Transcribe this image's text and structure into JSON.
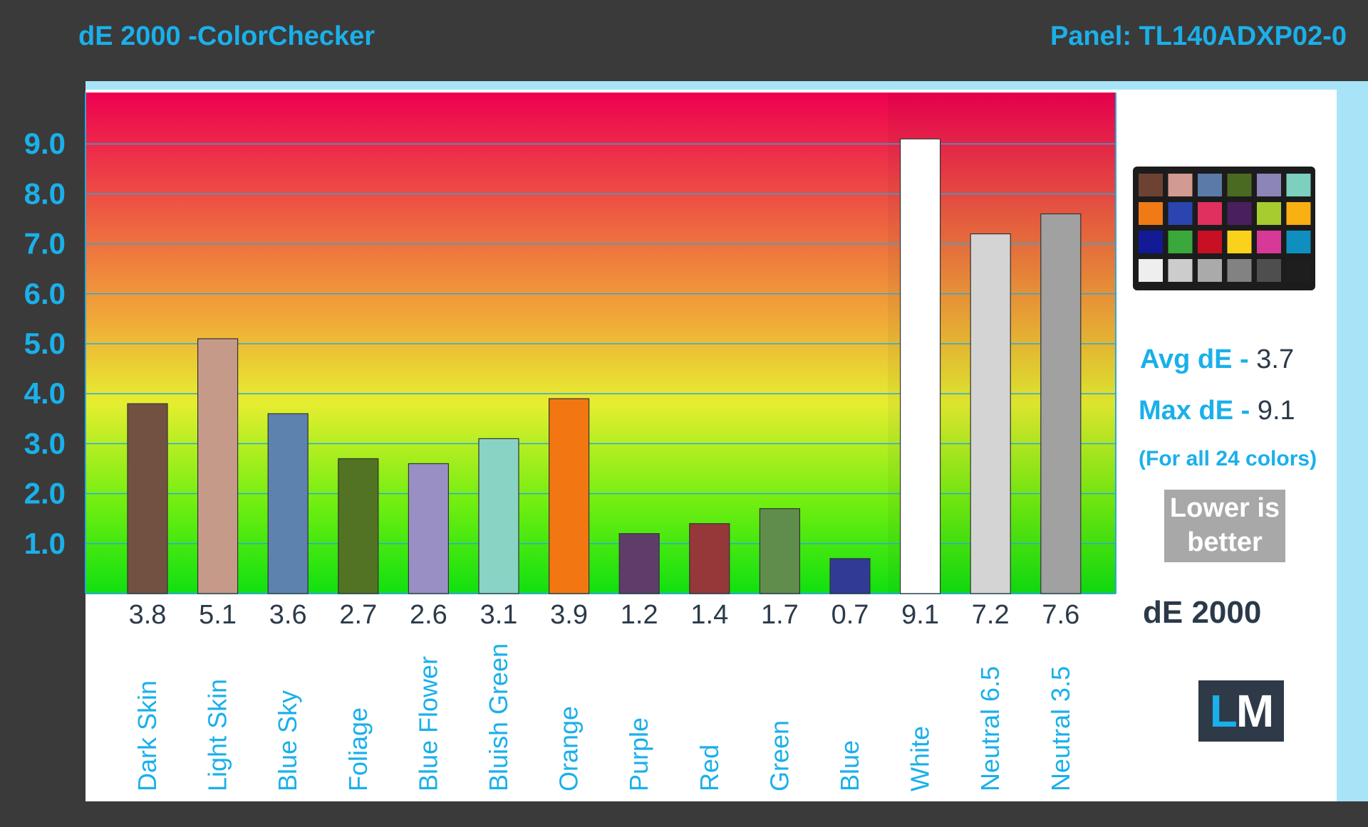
{
  "header": {
    "title": "dE 2000 -ColorChecker",
    "panel": "Panel: TL140ADXP02-0"
  },
  "stats": {
    "avg_label": "Avg dE -",
    "avg_value": "3.7",
    "max_label": "Max dE -",
    "max_value": "9.1",
    "note": "(For all 24 colors)",
    "lower_line1": "Lower is",
    "lower_line2": "better",
    "unit": "dE 2000"
  },
  "logo": {
    "letter1": "L",
    "letter2": "M"
  },
  "colors": {
    "accent": "#1ab0ea",
    "background": "#3a3a3a",
    "gradient_top": "#ee0050",
    "gradient_bottom": "#10e010"
  },
  "colorchecker_swatches": [
    "#6e4233",
    "#d29a90",
    "#5b7aa8",
    "#4a6a22",
    "#8c85b8",
    "#7dd0bd",
    "#f07a16",
    "#2a44b0",
    "#e03060",
    "#4a1f5e",
    "#a6cc30",
    "#f8b012",
    "#121a96",
    "#3aa83a",
    "#c81024",
    "#fad21c",
    "#d83896",
    "#0e8fc0",
    "#eeeeee",
    "#cccccc",
    "#aaaaaa",
    "#828282",
    "#4e4e4e",
    "#1e1e1e"
  ],
  "chart_data": {
    "type": "bar",
    "title": "dE 2000 -ColorChecker",
    "ylim": [
      0,
      10
    ],
    "yticks": [
      "1.0",
      "2.0",
      "3.0",
      "4.0",
      "5.0",
      "6.0",
      "7.0",
      "8.0",
      "9.0"
    ],
    "grid": true,
    "categories": [
      "Dark Skin",
      "Light Skin",
      "Blue Sky",
      "Foliage",
      "Blue Flower",
      "Bluish Green",
      "Orange",
      "Purple",
      "Red",
      "Green",
      "Blue",
      "White",
      "Neutral 6.5",
      "Neutral 3.5"
    ],
    "values": [
      3.8,
      5.1,
      3.6,
      2.7,
      2.6,
      3.1,
      3.9,
      1.2,
      1.4,
      1.7,
      0.7,
      9.1,
      7.2,
      7.6
    ],
    "value_labels": [
      "3.8",
      "5.1",
      "3.6",
      "2.7",
      "2.6",
      "3.1",
      "3.9",
      "1.2",
      "1.4",
      "1.7",
      "0.7",
      "9.1",
      "7.2",
      "7.6"
    ],
    "bar_colors": [
      "#735141",
      "#c69a89",
      "#5c82ad",
      "#527323",
      "#9a8fc4",
      "#89d3c5",
      "#f27712",
      "#5f3d6b",
      "#963839",
      "#608d4b",
      "#313b96",
      "#ffffff",
      "#d4d4d4",
      "#a1a1a1"
    ]
  }
}
